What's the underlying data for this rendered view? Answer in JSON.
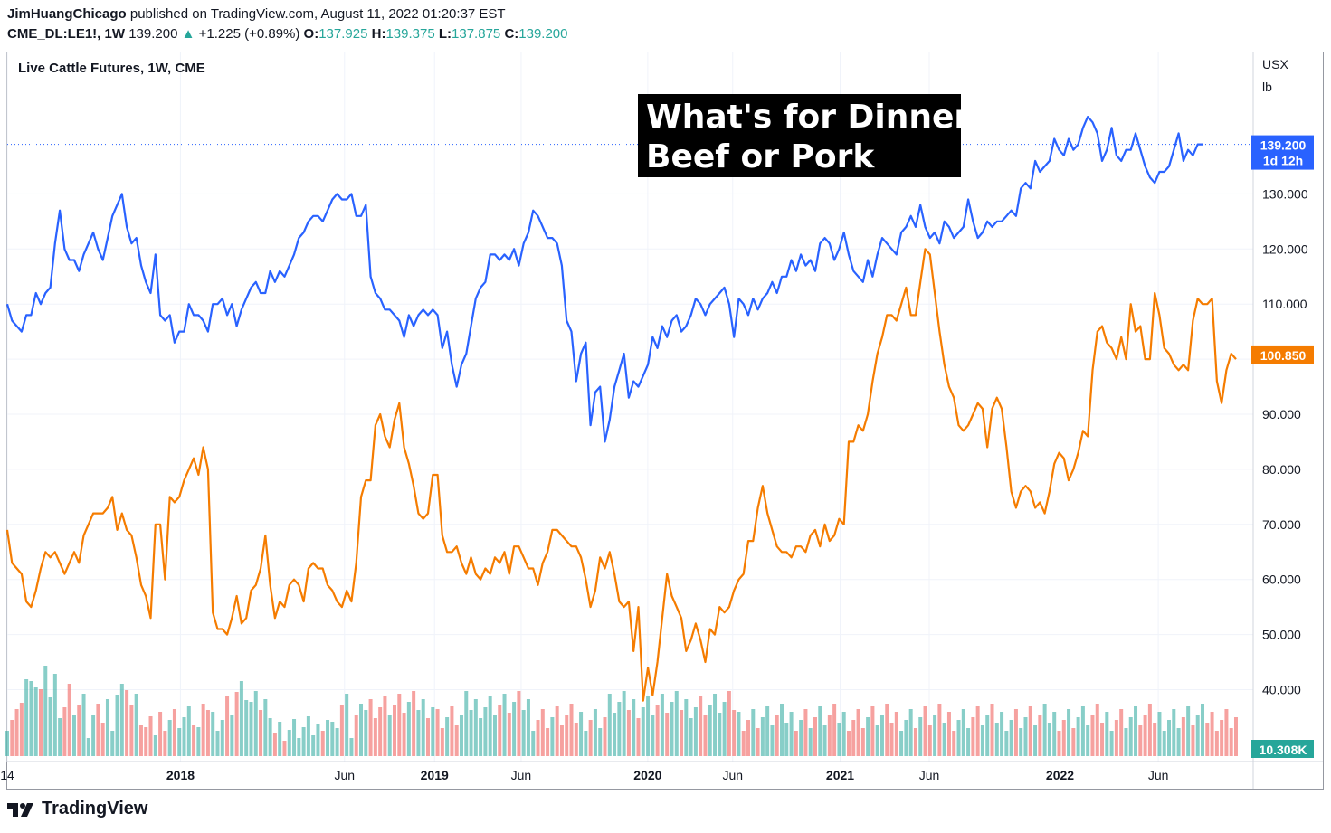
{
  "header": {
    "publisher": "JimHuangChicago",
    "published_text": "published on TradingView.com, August 11, 2022 01:20:37 EST",
    "symbol": "CME_DL:LE1!, 1W",
    "last": "139.200",
    "change": "+1.225 (+0.89%)",
    "open_label": "O:",
    "open": "137.925",
    "high_label": "H:",
    "high": "139.375",
    "low_label": "L:",
    "low": "137.875",
    "close_label": "C:",
    "close": "139.200"
  },
  "chart_title": "Live Cattle Futures, 1W, CME",
  "units": {
    "currency": "USX",
    "unit": "lb"
  },
  "annotation": {
    "line1": "What's for Dinner?",
    "line2": "Beef or Pork"
  },
  "price_badges": {
    "cattle": {
      "value": "139.200",
      "countdown": "1d 12h",
      "color": "#2962ff"
    },
    "hogs": {
      "value": "100.850",
      "color": "#f57c00"
    },
    "volume": {
      "value": "10.308K",
      "color": "#26a69a"
    }
  },
  "colors": {
    "cattle_line": "#2962ff",
    "hogs_line": "#f57c00",
    "vol_up": "#26a69a",
    "vol_down": "#ef5350"
  },
  "footer": {
    "brand": "TradingView"
  },
  "chart_data": {
    "type": "line",
    "ylim": [
      30,
      150
    ],
    "y_ticks": [
      "40.000",
      "50.000",
      "60.000",
      "70.000",
      "80.000",
      "90.000",
      "100.000",
      "110.000",
      "120.000",
      "130.000"
    ],
    "x_ticks": [
      {
        "label": "14",
        "t": 0.0
      },
      {
        "label": "2018",
        "t": 0.208
      },
      {
        "label": "Jun",
        "t": 0.405
      },
      {
        "label": "2019",
        "t": 0.513
      },
      {
        "label": "Jun",
        "t": 0.617
      },
      {
        "label": "2020",
        "t": 0.769
      },
      {
        "label": "Jun",
        "t": 0.871
      },
      {
        "label": "2021",
        "t": 1.0
      },
      {
        "label": "Jun",
        "t": 1.107
      },
      {
        "label": "2022",
        "t": 1.264
      },
      {
        "label": "Jun",
        "t": 1.382
      }
    ],
    "series": [
      {
        "name": "Live Cattle",
        "values": [
          110,
          107,
          106,
          105,
          108,
          108,
          112,
          110,
          112,
          113,
          121,
          127,
          120,
          118,
          118,
          116,
          119,
          121,
          123,
          120,
          118,
          122,
          126,
          128,
          130,
          124,
          121,
          122,
          117,
          114,
          112,
          119,
          108,
          107,
          108,
          103,
          105,
          105,
          110,
          108,
          108,
          107,
          105,
          110,
          110,
          111,
          108,
          110,
          106,
          109,
          111,
          113,
          114,
          112,
          112,
          116,
          114,
          116,
          115,
          117,
          119,
          122,
          123,
          125,
          126,
          126,
          125,
          127,
          129,
          130,
          129,
          129,
          130,
          126,
          126,
          128,
          115,
          112,
          111,
          109,
          109,
          108,
          107,
          104,
          108,
          106,
          108,
          109,
          108,
          109,
          108,
          102,
          105,
          99,
          95,
          99,
          101,
          106,
          111,
          113,
          114,
          119,
          119,
          118,
          119,
          118,
          120,
          117,
          121,
          123,
          127,
          126,
          124,
          122,
          122,
          121,
          117,
          107,
          105,
          96,
          101,
          103,
          88,
          94,
          95,
          85,
          89,
          95,
          98,
          101,
          93,
          96,
          95,
          97,
          99,
          104,
          102,
          106,
          104,
          107,
          108,
          105,
          106,
          108,
          111,
          110,
          108,
          110,
          111,
          112,
          113,
          110,
          104,
          111,
          110,
          108,
          111,
          109,
          111,
          112,
          114,
          112,
          115,
          115,
          118,
          116,
          119,
          117,
          118,
          116,
          121,
          122,
          121,
          118,
          120,
          123,
          119,
          116,
          115,
          114,
          118,
          115,
          119,
          122,
          121,
          120,
          119,
          123,
          124,
          126,
          124,
          128,
          124,
          122,
          123,
          121,
          125,
          124,
          122,
          123,
          124,
          129,
          125,
          122,
          123,
          125,
          124,
          125,
          125,
          126,
          127,
          126,
          131,
          132,
          131,
          136,
          134,
          135,
          136,
          140,
          138,
          137,
          140,
          138,
          139,
          142,
          144,
          143,
          141,
          136,
          138,
          142,
          137,
          136,
          138,
          138,
          141,
          138,
          135,
          133,
          132,
          134,
          134,
          135,
          138,
          141,
          136,
          138,
          137,
          139,
          139
        ]
      },
      {
        "name": "Lean Hogs",
        "values": [
          69,
          63,
          62,
          61,
          56,
          55,
          58,
          62,
          65,
          64,
          65,
          63,
          61,
          63,
          65,
          63,
          68,
          70,
          72,
          72,
          72,
          73,
          75,
          69,
          72,
          69,
          68,
          64,
          59,
          57,
          53,
          70,
          70,
          60,
          75,
          74,
          75,
          78,
          80,
          82,
          79,
          84,
          80,
          54,
          51,
          51,
          50,
          53,
          57,
          52,
          53,
          58,
          59,
          62,
          68,
          59,
          53,
          56,
          55,
          59,
          60,
          59,
          56,
          62,
          63,
          62,
          62,
          59,
          58,
          56,
          55,
          58,
          56,
          63,
          75,
          78,
          78,
          88,
          90,
          86,
          84,
          89,
          92,
          84,
          81,
          77,
          72,
          71,
          72,
          79,
          79,
          68,
          65,
          65,
          66,
          63,
          61,
          64,
          61,
          60,
          62,
          61,
          64,
          63,
          65,
          61,
          66,
          66,
          64,
          62,
          62,
          59,
          63,
          65,
          69,
          69,
          68,
          67,
          66,
          66,
          64,
          60,
          55,
          58,
          64,
          62,
          65,
          61,
          56,
          55,
          56,
          47,
          55,
          38,
          44,
          39,
          45,
          53,
          61,
          57,
          55,
          53,
          47,
          49,
          52,
          49,
          45,
          51,
          50,
          55,
          54,
          55,
          58,
          60,
          61,
          67,
          67,
          73,
          77,
          72,
          69,
          66,
          65,
          65,
          64,
          66,
          66,
          65,
          68,
          69,
          66,
          70,
          67,
          68,
          71,
          70,
          85,
          85,
          88,
          87,
          90,
          96,
          101,
          104,
          108,
          108,
          107,
          110,
          113,
          108,
          108,
          114,
          120,
          119,
          112,
          105,
          99,
          95,
          93,
          88,
          87,
          88,
          90,
          92,
          91,
          84,
          91,
          93,
          91,
          84,
          76,
          73,
          76,
          77,
          76,
          73,
          74,
          72,
          76,
          81,
          83,
          82,
          78,
          80,
          83,
          87,
          86,
          98,
          105,
          106,
          103,
          102,
          100,
          104,
          100,
          110,
          105,
          106,
          100,
          100,
          112,
          108,
          102,
          101,
          99,
          98,
          99,
          98,
          107,
          111,
          110,
          110,
          111,
          96,
          92,
          98,
          101,
          100
        ]
      }
    ],
    "volume": [
      2,
      2,
      2,
      4,
      5,
      4,
      5,
      4,
      5,
      4,
      5,
      3,
      3,
      4,
      3,
      3,
      3,
      1,
      2,
      2,
      2,
      3,
      2,
      4,
      4,
      5,
      3,
      3,
      2,
      1,
      1,
      1,
      2,
      2,
      2,
      2,
      2,
      2,
      2,
      2,
      1,
      2,
      3,
      2,
      2,
      2,
      3,
      3,
      4,
      4,
      4,
      3,
      3,
      3,
      3,
      3,
      1,
      1,
      1,
      1,
      1,
      1,
      1,
      1,
      1,
      1,
      2,
      2,
      1,
      2,
      3,
      3,
      1,
      2,
      2,
      3,
      3,
      3,
      3,
      3,
      3,
      3,
      3,
      3,
      3,
      3,
      3,
      3,
      3,
      3,
      2,
      2,
      2,
      2,
      2,
      2,
      3,
      3,
      3,
      3,
      3,
      3,
      3,
      3,
      3,
      3,
      3,
      3,
      3,
      3,
      2,
      2,
      2,
      2,
      2,
      2,
      2,
      2,
      2,
      2,
      2,
      2,
      2,
      2,
      2,
      2,
      3,
      3,
      3,
      3,
      3,
      3,
      3,
      3,
      3,
      3,
      3,
      3,
      3,
      3,
      3,
      3,
      3,
      3,
      3,
      3,
      3,
      3,
      3,
      3,
      3,
      3,
      3,
      2,
      2,
      2,
      2,
      2,
      2,
      2,
      2,
      2,
      2,
      2,
      2,
      2,
      2,
      2,
      2,
      2,
      2,
      2,
      2,
      2,
      2,
      2,
      2,
      2,
      2,
      2,
      2,
      2,
      2,
      2,
      2,
      2,
      2,
      2,
      2,
      2,
      2,
      2,
      2,
      2,
      2,
      2,
      2,
      2,
      2,
      2,
      2,
      2,
      2,
      2,
      2,
      2,
      2,
      2,
      2,
      2,
      2,
      2,
      2,
      2,
      2,
      2,
      2,
      2,
      2,
      2,
      2,
      2,
      2,
      2,
      2,
      2,
      2,
      2,
      2,
      2,
      2,
      2,
      2,
      2,
      2,
      2,
      2,
      2,
      2,
      2,
      2,
      2,
      2,
      2,
      2,
      2,
      2,
      2,
      2,
      2,
      2,
      2,
      2,
      2,
      2,
      2,
      2,
      2
    ]
  }
}
